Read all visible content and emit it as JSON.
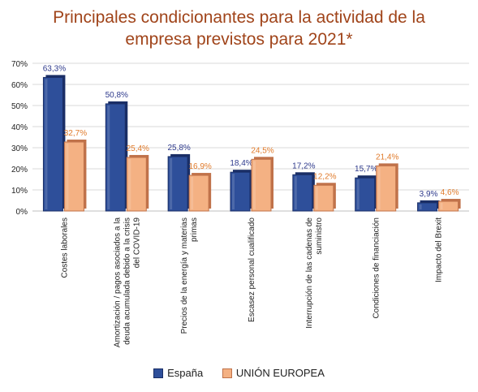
{
  "title_lines": [
    "Principales condicionantes para la actividad de la",
    "empresa previstos para 2021*"
  ],
  "chart_data": {
    "type": "bar",
    "title": "Principales condicionantes para la actividad de la empresa previstos para 2021*",
    "categories": [
      [
        "Costes laborales"
      ],
      [
        "Amortización / pagos asociados a la",
        "deuda acumulada debido a la crisis",
        "del COVID-19"
      ],
      [
        "Precios de la energía y materias",
        "primas"
      ],
      [
        "Escasez personal cualificado"
      ],
      [
        "Interrupción de las cadenas de",
        "suministro"
      ],
      [
        "Condiciones de financiación"
      ],
      [
        "Impacto del Brexit"
      ]
    ],
    "series": [
      {
        "name": "España",
        "values": [
          63.3,
          50.8,
          25.8,
          18.4,
          17.2,
          15.7,
          3.9
        ],
        "labels": [
          "63,3%",
          "50,8%",
          "25,8%",
          "18,4%",
          "17,2%",
          "15,7%",
          "3,9%"
        ],
        "color": "#2e4f9a",
        "dark": "#1a2e66",
        "label_color": "#2e3a8c"
      },
      {
        "name": "UNIÓN EUROPEA",
        "values": [
          32.7,
          25.4,
          16.9,
          24.5,
          12.2,
          21.4,
          4.6
        ],
        "labels": [
          "32,7%",
          "25,4%",
          "16,9%",
          "24,5%",
          "12,2%",
          "21,4%",
          "4,6%"
        ],
        "color": "#f4b183",
        "dark": "#c0724a",
        "label_color": "#e07a2a"
      }
    ],
    "ylim": [
      0,
      70
    ],
    "yticks": [
      0,
      10,
      20,
      30,
      40,
      50,
      60,
      70
    ],
    "ytick_labels": [
      "0%",
      "10%",
      "20%",
      "30%",
      "40%",
      "50%",
      "60%",
      "70%"
    ],
    "grid": true,
    "legend_position": "bottom"
  }
}
